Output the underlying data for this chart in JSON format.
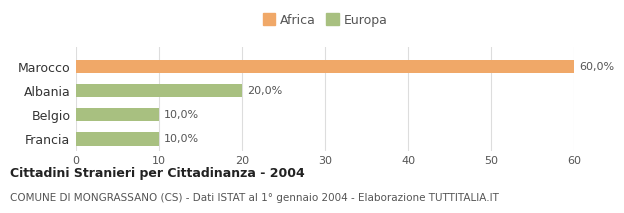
{
  "categories": [
    "Marocco",
    "Albania",
    "Belgio",
    "Francia"
  ],
  "values": [
    60.0,
    20.0,
    10.0,
    10.0
  ],
  "colors": [
    "#f0a868",
    "#a8c080",
    "#a8c080",
    "#a8c080"
  ],
  "legend_items": [
    {
      "label": "Africa",
      "color": "#f0a868"
    },
    {
      "label": "Europa",
      "color": "#a8c080"
    }
  ],
  "xlim": [
    0,
    60
  ],
  "xticks": [
    0,
    10,
    20,
    30,
    40,
    50,
    60
  ],
  "title_bold": "Cittadini Stranieri per Cittadinanza - 2004",
  "subtitle": "COMUNE DI MONGRASSANO (CS) - Dati ISTAT al 1° gennaio 2004 - Elaborazione TUTTITALIA.IT",
  "bar_labels": [
    "60,0%",
    "20,0%",
    "10,0%",
    "10,0%"
  ],
  "background_color": "#ffffff",
  "grid_color": "#dddddd"
}
